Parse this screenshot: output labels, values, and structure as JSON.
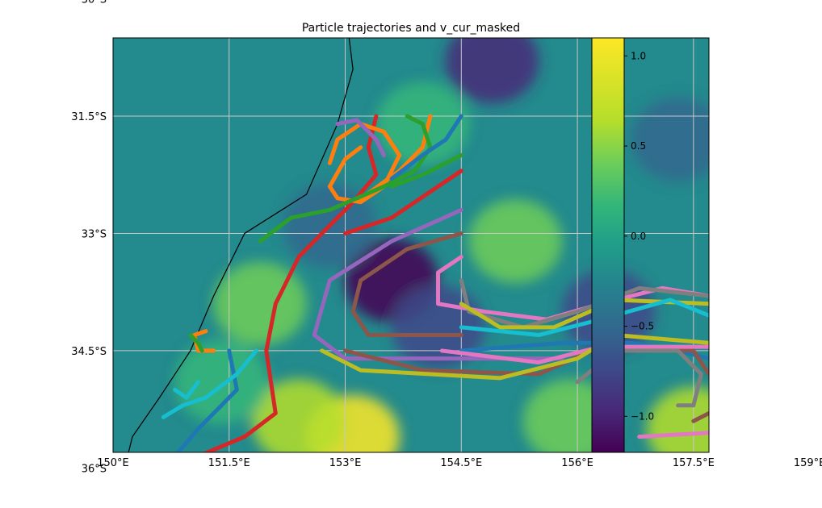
{
  "chart_data": {
    "type": "heatmap",
    "title": "Particle trajectories and v_cur_masked",
    "xlabel": "",
    "ylabel": "",
    "xlim": [
      150.0,
      157.7
    ],
    "ylim": [
      -35.8,
      -30.5
    ],
    "x_ticks": [
      150.0,
      151.5,
      153.0,
      154.5,
      156.0,
      157.5,
      159.0
    ],
    "x_tick_labels": [
      "150°E",
      "151.5°E",
      "153°E",
      "154.5°E",
      "156°E",
      "157.5°E",
      "159°E"
    ],
    "y_ticks": [
      -30.0,
      -31.5,
      -33.0,
      -34.5,
      -36.0
    ],
    "y_tick_labels": [
      "30°S",
      "31.5°S",
      "33°S",
      "34.5°S",
      "36°S"
    ],
    "grid": true,
    "colormap": "viridis",
    "colorbar": {
      "range": [
        -1.2,
        1.1
      ],
      "ticks": [
        1.0,
        0.5,
        0.0,
        -0.5,
        -1.0
      ],
      "tick_labels": [
        "1.0",
        "0.5",
        "0.0",
        "−0.5",
        "−1.0"
      ],
      "placement": "right-inset"
    },
    "field_blobs": [
      {
        "lon": 154.9,
        "lat": -30.8,
        "value": -0.85
      },
      {
        "lon": 153.6,
        "lat": -33.6,
        "value": -1.1
      },
      {
        "lon": 152.8,
        "lat": -32.9,
        "value": -0.5
      },
      {
        "lon": 154.2,
        "lat": -34.2,
        "value": -0.7
      },
      {
        "lon": 156.4,
        "lat": -34.0,
        "value": -0.6
      },
      {
        "lon": 157.3,
        "lat": -31.8,
        "value": -0.45
      },
      {
        "lon": 151.9,
        "lat": -33.9,
        "value": 0.55
      },
      {
        "lon": 153.1,
        "lat": -35.6,
        "value": 1.1
      },
      {
        "lon": 152.4,
        "lat": -35.4,
        "value": 0.65
      },
      {
        "lon": 155.2,
        "lat": -33.1,
        "value": 0.45
      },
      {
        "lon": 155.9,
        "lat": -35.4,
        "value": 0.6
      },
      {
        "lon": 157.5,
        "lat": -35.5,
        "value": 0.8
      },
      {
        "lon": 154.0,
        "lat": -31.6,
        "value": 0.35
      },
      {
        "lon": 151.4,
        "lat": -34.9,
        "value": 0.3
      }
    ],
    "coastline": [
      [
        153.05,
        -30.5
      ],
      [
        153.1,
        -30.9
      ],
      [
        152.9,
        -31.6
      ],
      [
        152.5,
        -32.5
      ],
      [
        151.7,
        -33.0
      ],
      [
        151.3,
        -33.8
      ],
      [
        151.0,
        -34.5
      ],
      [
        150.6,
        -35.1
      ],
      [
        150.25,
        -35.6
      ],
      [
        150.2,
        -35.8
      ]
    ],
    "series": [
      {
        "color": "#d62728",
        "points": [
          [
            153.4,
            -31.5
          ],
          [
            153.3,
            -31.9
          ],
          [
            153.4,
            -32.25
          ],
          [
            153.1,
            -32.6
          ],
          [
            152.4,
            -33.3
          ],
          [
            152.1,
            -33.9
          ],
          [
            151.98,
            -34.5
          ],
          [
            152.1,
            -35.3
          ],
          [
            151.7,
            -35.6
          ],
          [
            151.1,
            -35.85
          ]
        ]
      },
      {
        "color": "#d62728",
        "points": [
          [
            154.5,
            -32.2
          ],
          [
            153.6,
            -32.8
          ],
          [
            153.0,
            -33.0
          ]
        ]
      },
      {
        "color": "#ff7f0e",
        "points": [
          [
            153.2,
            -31.9
          ],
          [
            153.0,
            -32.05
          ],
          [
            152.8,
            -32.4
          ],
          [
            152.9,
            -32.55
          ],
          [
            153.2,
            -32.6
          ],
          [
            153.5,
            -32.4
          ],
          [
            153.7,
            -32.0
          ],
          [
            153.5,
            -31.7
          ],
          [
            153.2,
            -31.6
          ],
          [
            152.9,
            -31.8
          ],
          [
            152.8,
            -32.1
          ]
        ]
      },
      {
        "color": "#ff7f0e",
        "points": [
          [
            154.1,
            -31.5
          ],
          [
            154.0,
            -31.9
          ],
          [
            153.7,
            -32.2
          ],
          [
            153.35,
            -32.45
          ],
          [
            153.2,
            -32.55
          ]
        ]
      },
      {
        "color": "#ff7f0e",
        "points": [
          [
            151.2,
            -34.25
          ],
          [
            151.05,
            -34.3
          ],
          [
            151.1,
            -34.5
          ],
          [
            151.3,
            -34.5
          ]
        ]
      },
      {
        "color": "#2ca02c",
        "points": [
          [
            153.8,
            -31.5
          ],
          [
            154.0,
            -31.6
          ],
          [
            154.1,
            -31.9
          ],
          [
            153.9,
            -32.2
          ],
          [
            153.5,
            -32.4
          ],
          [
            152.8,
            -32.7
          ],
          [
            152.3,
            -32.8
          ],
          [
            151.9,
            -33.1
          ]
        ]
      },
      {
        "color": "#2ca02c",
        "points": [
          [
            154.5,
            -32.0
          ],
          [
            154.0,
            -32.25
          ],
          [
            153.6,
            -32.4
          ]
        ]
      },
      {
        "color": "#2ca02c",
        "points": [
          [
            151.0,
            -34.3
          ],
          [
            151.1,
            -34.4
          ],
          [
            151.15,
            -34.5
          ]
        ]
      },
      {
        "color": "#1f77b4",
        "points": [
          [
            154.5,
            -31.5
          ],
          [
            154.3,
            -31.8
          ],
          [
            154.0,
            -32.0
          ],
          [
            153.6,
            -32.3
          ]
        ]
      },
      {
        "color": "#1f77b4",
        "points": [
          [
            151.5,
            -34.5
          ],
          [
            151.6,
            -35.0
          ],
          [
            151.1,
            -35.5
          ],
          [
            150.8,
            -35.85
          ]
        ]
      },
      {
        "color": "#1f77b4",
        "points": [
          [
            154.5,
            -34.5
          ],
          [
            155.8,
            -34.4
          ],
          [
            156.7,
            -34.4
          ],
          [
            157.3,
            -34.5
          ],
          [
            157.7,
            -34.6
          ]
        ]
      },
      {
        "color": "#9467bd",
        "points": [
          [
            152.9,
            -31.6
          ],
          [
            153.15,
            -31.55
          ],
          [
            153.4,
            -31.8
          ],
          [
            153.5,
            -32.0
          ]
        ]
      },
      {
        "color": "#9467bd",
        "points": [
          [
            154.5,
            -32.7
          ],
          [
            153.6,
            -33.1
          ],
          [
            152.8,
            -33.6
          ],
          [
            152.6,
            -34.3
          ],
          [
            153.0,
            -34.6
          ],
          [
            154.0,
            -34.6
          ],
          [
            155.8,
            -34.6
          ]
        ]
      },
      {
        "color": "#8c564b",
        "points": [
          [
            154.5,
            -33.0
          ],
          [
            153.8,
            -33.2
          ],
          [
            153.2,
            -33.6
          ],
          [
            153.1,
            -34.0
          ],
          [
            153.3,
            -34.3
          ],
          [
            154.5,
            -34.3
          ]
        ]
      },
      {
        "color": "#8c564b",
        "points": [
          [
            153.0,
            -34.5
          ],
          [
            154.0,
            -34.75
          ],
          [
            155.5,
            -34.8
          ],
          [
            156.3,
            -34.45
          ],
          [
            157.5,
            -34.5
          ],
          [
            157.7,
            -34.8
          ]
        ]
      },
      {
        "color": "#8c564b",
        "points": [
          [
            157.7,
            -35.3
          ],
          [
            157.5,
            -35.4
          ]
        ]
      },
      {
        "color": "#e377c2",
        "points": [
          [
            154.5,
            -33.3
          ],
          [
            154.2,
            -33.5
          ],
          [
            154.2,
            -33.9
          ],
          [
            154.8,
            -34.0
          ],
          [
            155.6,
            -34.1
          ],
          [
            156.3,
            -33.9
          ],
          [
            157.1,
            -33.7
          ],
          [
            157.7,
            -33.8
          ]
        ]
      },
      {
        "color": "#e377c2",
        "points": [
          [
            154.25,
            -34.5
          ],
          [
            155.5,
            -34.65
          ],
          [
            156.3,
            -34.45
          ],
          [
            157.7,
            -34.45
          ]
        ]
      },
      {
        "color": "#e377c2",
        "points": [
          [
            156.8,
            -35.6
          ],
          [
            157.7,
            -35.55
          ]
        ]
      },
      {
        "color": "#7f7f7f",
        "points": [
          [
            154.5,
            -33.6
          ],
          [
            154.6,
            -34.0
          ],
          [
            155.3,
            -34.2
          ],
          [
            156.0,
            -34.0
          ],
          [
            156.8,
            -33.7
          ],
          [
            157.7,
            -33.8
          ]
        ]
      },
      {
        "color": "#7f7f7f",
        "points": [
          [
            156.0,
            -34.9
          ],
          [
            156.5,
            -34.5
          ],
          [
            157.3,
            -34.5
          ],
          [
            157.6,
            -34.8
          ],
          [
            157.5,
            -35.2
          ],
          [
            157.3,
            -35.2
          ]
        ]
      },
      {
        "color": "#bcbd22",
        "points": [
          [
            152.7,
            -34.5
          ],
          [
            153.2,
            -34.75
          ],
          [
            155.0,
            -34.85
          ],
          [
            156.0,
            -34.6
          ],
          [
            156.5,
            -34.3
          ],
          [
            157.7,
            -34.4
          ]
        ]
      },
      {
        "color": "#bcbd22",
        "points": [
          [
            154.5,
            -33.9
          ],
          [
            155.0,
            -34.2
          ],
          [
            155.7,
            -34.2
          ],
          [
            156.5,
            -33.85
          ],
          [
            157.7,
            -33.9
          ]
        ]
      },
      {
        "color": "#17becf",
        "points": [
          [
            151.85,
            -34.5
          ],
          [
            151.6,
            -34.8
          ],
          [
            151.2,
            -35.1
          ],
          [
            150.9,
            -35.2
          ],
          [
            150.65,
            -35.35
          ]
        ]
      },
      {
        "color": "#17becf",
        "points": [
          [
            151.1,
            -34.9
          ],
          [
            150.95,
            -35.1
          ],
          [
            150.8,
            -35.0
          ]
        ]
      },
      {
        "color": "#17becf",
        "points": [
          [
            154.5,
            -34.2
          ],
          [
            155.5,
            -34.3
          ],
          [
            156.3,
            -34.1
          ],
          [
            157.2,
            -33.85
          ],
          [
            157.7,
            -34.05
          ]
        ]
      }
    ]
  }
}
